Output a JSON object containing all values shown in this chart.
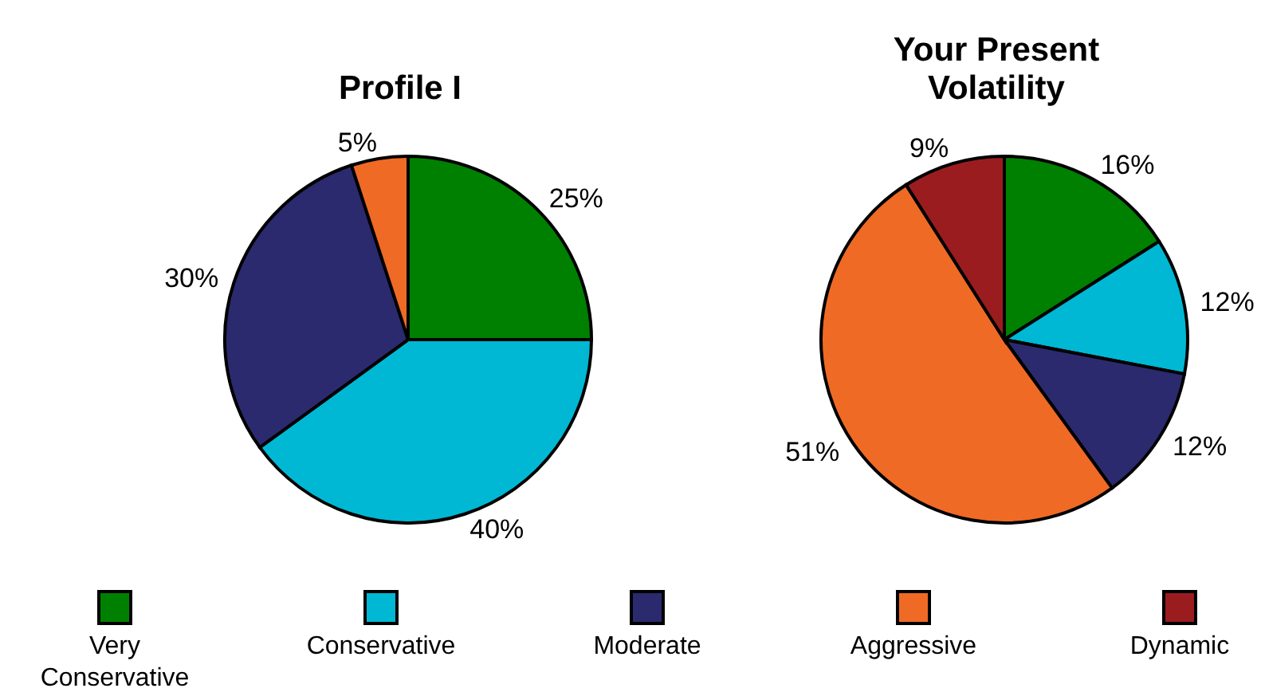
{
  "chart_data": [
    {
      "type": "pie",
      "title": "Profile I",
      "categories": [
        null,
        null,
        null,
        null
      ],
      "values": [
        25,
        40,
        30,
        5
      ],
      "colors": [
        "#008000",
        "#00b8d4",
        "#2b2a6e",
        "#ef6a25"
      ],
      "value_labels": [
        "25%",
        "40%",
        "30%",
        "5%"
      ]
    },
    {
      "type": "pie",
      "title": "Your Present Volatility",
      "categories": [
        "Very Conservative",
        "Conservative",
        "Moderate",
        "Aggressive",
        "Dynamic"
      ],
      "values": [
        16,
        12,
        12,
        51,
        9
      ],
      "colors": [
        "#008000",
        "#00b8d4",
        "#2b2a6e",
        "#ef6a25",
        "#9b1c1f"
      ],
      "value_labels": [
        "16%",
        "12%",
        "12%",
        "51%",
        "9%"
      ],
      "legend": "bottom"
    }
  ]
}
